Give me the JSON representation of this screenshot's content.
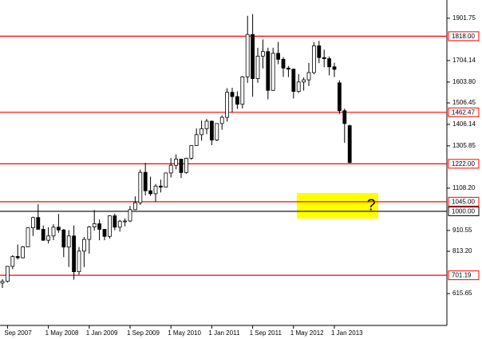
{
  "chart_data": {
    "type": "candlestick",
    "categories": [
      null,
      "Sep 2007",
      null,
      null,
      null,
      null,
      null,
      null,
      null,
      "1 May 2008",
      null,
      null,
      null,
      null,
      null,
      null,
      null,
      "1 Jan 2009",
      null,
      null,
      null,
      null,
      null,
      null,
      null,
      "1 Sep 2009",
      null,
      null,
      null,
      null,
      null,
      null,
      null,
      "1 May 2010",
      null,
      null,
      null,
      null,
      null,
      null,
      null,
      "1 Jan 2011",
      null,
      null,
      null,
      null,
      null,
      null,
      null,
      "1 Sep 2011",
      null,
      null,
      null,
      null,
      null,
      null,
      null,
      "1 May 2012",
      null,
      null,
      null,
      null,
      null,
      null,
      null,
      "1 Jan 2013",
      null,
      null,
      null
    ],
    "open": [
      665,
      673,
      743,
      789,
      783,
      834,
      923,
      971,
      916,
      865,
      885,
      926,
      913,
      833,
      885,
      718,
      814,
      869,
      927,
      942,
      916,
      883,
      979,
      926,
      954,
      955,
      1008,
      1040,
      1182,
      1096,
      1082,
      1118,
      1113,
      1179,
      1215,
      1244,
      1181,
      1248,
      1307,
      1358,
      1386,
      1421,
      1333,
      1410,
      1439,
      1556,
      1536,
      1500,
      1628,
      1826,
      1620,
      1725,
      1746,
      1565,
      1738,
      1710,
      1669,
      1664,
      1560,
      1604,
      1614,
      1648,
      1773,
      1718,
      1713,
      1675,
      1600,
      1470,
      1400
    ],
    "high": [
      683,
      745,
      795,
      845,
      838,
      924,
      975,
      1033,
      934,
      925,
      940,
      988,
      918,
      912,
      934,
      833,
      880,
      932,
      1006,
      962,
      917,
      981,
      989,
      960,
      967,
      1025,
      1070,
      1195,
      1226,
      1162,
      1128,
      1148,
      1181,
      1249,
      1266,
      1245,
      1250,
      1307,
      1387,
      1424,
      1432,
      1424,
      1411,
      1448,
      1575,
      1577,
      1560,
      1632,
      1913,
      1921,
      1764,
      1803,
      1764,
      1764,
      1791,
      1720,
      1679,
      1667,
      1641,
      1625,
      1693,
      1790,
      1796,
      1755,
      1723,
      1694,
      1612,
      1480,
      1405
    ],
    "low": [
      642,
      667,
      730,
      775,
      780,
      835,
      885,
      914,
      862,
      850,
      865,
      900,
      786,
      740,
      681,
      704,
      740,
      802,
      910,
      865,
      865,
      873,
      912,
      905,
      930,
      950,
      1005,
      1030,
      1074,
      1072,
      1045,
      1088,
      1112,
      1158,
      1196,
      1156,
      1176,
      1241,
      1308,
      1330,
      1360,
      1309,
      1328,
      1381,
      1419,
      1462,
      1478,
      1480,
      1600,
      1535,
      1600,
      1667,
      1523,
      1563,
      1687,
      1628,
      1627,
      1527,
      1553,
      1564,
      1585,
      1640,
      1692,
      1673,
      1635,
      1627,
      1455,
      1320,
      1225
    ],
    "close": [
      673,
      743,
      789,
      783,
      834,
      923,
      971,
      916,
      865,
      885,
      926,
      913,
      833,
      885,
      718,
      814,
      869,
      927,
      942,
      916,
      883,
      979,
      926,
      954,
      955,
      1008,
      1040,
      1182,
      1096,
      1082,
      1118,
      1113,
      1179,
      1215,
      1244,
      1181,
      1248,
      1307,
      1358,
      1386,
      1421,
      1333,
      1410,
      1439,
      1556,
      1536,
      1500,
      1628,
      1826,
      1620,
      1725,
      1746,
      1565,
      1738,
      1710,
      1669,
      1664,
      1560,
      1604,
      1614,
      1648,
      1773,
      1718,
      1713,
      1675,
      1663,
      1470,
      1410,
      1228
    ],
    "ylim": [
      467,
      1987
    ],
    "yticks": [
      1901.75,
      {
        "value": 1704.14,
        "label": "1704.14"
      },
      {
        "value": 1603.8,
        "label": "1603.80"
      },
      1506.45,
      1406.14,
      1305.85,
      {
        "value": 1108.2,
        "label": "1108.20"
      },
      910.55,
      {
        "value": 813.2,
        "label": "813.20"
      },
      615.65
    ],
    "levels": [
      {
        "value": 1818,
        "label": "1818.00",
        "color": "#ff0000"
      },
      {
        "value": 1462.47,
        "label": "1462.47",
        "color": "#ff0000"
      },
      {
        "value": 1222,
        "label": "1222.00",
        "color": "#ff0000"
      },
      {
        "value": 1045,
        "label": "1045.00",
        "color": "#ff0000"
      },
      {
        "value": 1000,
        "label": "1000.00",
        "color": "#000000"
      },
      {
        "value": 701.19,
        "label": "701.19",
        "color": "#ff0000"
      }
    ],
    "annotation": "?"
  }
}
